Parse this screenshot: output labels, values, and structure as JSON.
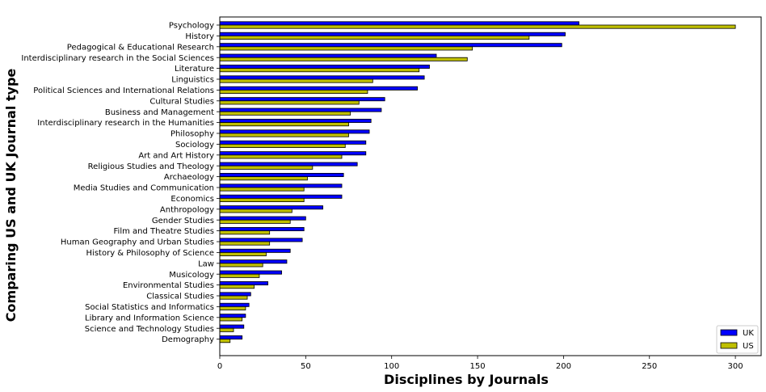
{
  "chart_data": {
    "type": "bar",
    "orientation": "horizontal",
    "xlabel": "Disciplines by Journals",
    "ylabel": "Comparing US and UK Journal type",
    "xlim": [
      0,
      315
    ],
    "xticks": [
      0,
      50,
      100,
      150,
      200,
      250,
      300
    ],
    "grid": false,
    "legend_position": "bottom-right",
    "categories": [
      "Psychology",
      "History",
      "Pedagogical & Educational Research",
      "Interdisciplinary research in the Social Sciences",
      "Literature",
      "Linguistics",
      "Political Sciences and International Relations",
      "Cultural Studies",
      "Business and Management",
      "Interdisciplinary research in the Humanities",
      "Philosophy",
      "Sociology",
      "Art and Art History",
      "Religious Studies and Theology",
      "Archaeology",
      "Media Studies and Communication",
      "Economics",
      "Anthropology",
      "Gender Studies",
      "Film and Theatre Studies",
      "Human Geography and Urban Studies",
      "History & Philosophy of Science",
      "Law",
      "Musicology",
      "Environmental Studies",
      "Classical Studies",
      "Social Statistics and Informatics",
      "Library and Information Science",
      "Science and Technology Studies",
      "Demography"
    ],
    "series": [
      {
        "name": "UK",
        "color": "#0000ff",
        "values": [
          209,
          201,
          199,
          126,
          122,
          119,
          115,
          96,
          94,
          88,
          87,
          85,
          85,
          80,
          72,
          71,
          71,
          60,
          50,
          49,
          48,
          41,
          39,
          36,
          28,
          18,
          17,
          15,
          14,
          13
        ]
      },
      {
        "name": "US",
        "color": "#bfbf00",
        "values": [
          300,
          180,
          147,
          144,
          116,
          89,
          86,
          81,
          76,
          75,
          75,
          73,
          71,
          54,
          51,
          49,
          49,
          42,
          41,
          29,
          29,
          27,
          25,
          23,
          20,
          16,
          15,
          13,
          8,
          6
        ]
      }
    ]
  }
}
